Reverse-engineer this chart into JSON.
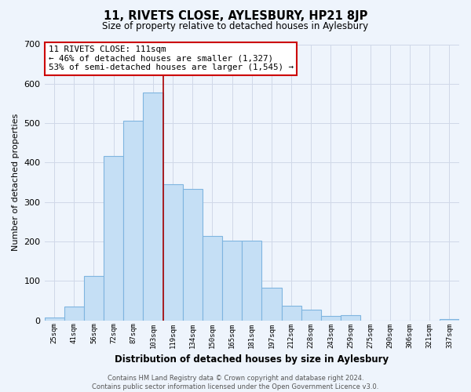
{
  "title": "11, RIVETS CLOSE, AYLESBURY, HP21 8JP",
  "subtitle": "Size of property relative to detached houses in Aylesbury",
  "xlabel": "Distribution of detached houses by size in Aylesbury",
  "ylabel": "Number of detached properties",
  "categories": [
    "25sqm",
    "41sqm",
    "56sqm",
    "72sqm",
    "87sqm",
    "103sqm",
    "119sqm",
    "134sqm",
    "150sqm",
    "165sqm",
    "181sqm",
    "197sqm",
    "212sqm",
    "228sqm",
    "243sqm",
    "259sqm",
    "275sqm",
    "290sqm",
    "306sqm",
    "321sqm",
    "337sqm"
  ],
  "values": [
    8,
    35,
    112,
    416,
    507,
    578,
    345,
    333,
    213,
    202,
    202,
    82,
    37,
    27,
    12,
    13,
    0,
    0,
    0,
    0,
    3
  ],
  "bar_color": "#c5dff5",
  "bar_edge_color": "#7fb5e0",
  "grid_color": "#d0d8e8",
  "vline_color": "#aa0000",
  "annotation_text": "11 RIVETS CLOSE: 111sqm\n← 46% of detached houses are smaller (1,327)\n53% of semi-detached houses are larger (1,545) →",
  "annotation_box_color": "#ffffff",
  "annotation_box_edge": "#cc0000",
  "ylim": [
    0,
    700
  ],
  "yticks": [
    0,
    100,
    200,
    300,
    400,
    500,
    600,
    700
  ],
  "footer": "Contains HM Land Registry data © Crown copyright and database right 2024.\nContains public sector information licensed under the Open Government Licence v3.0.",
  "bg_color": "#eef4fc"
}
